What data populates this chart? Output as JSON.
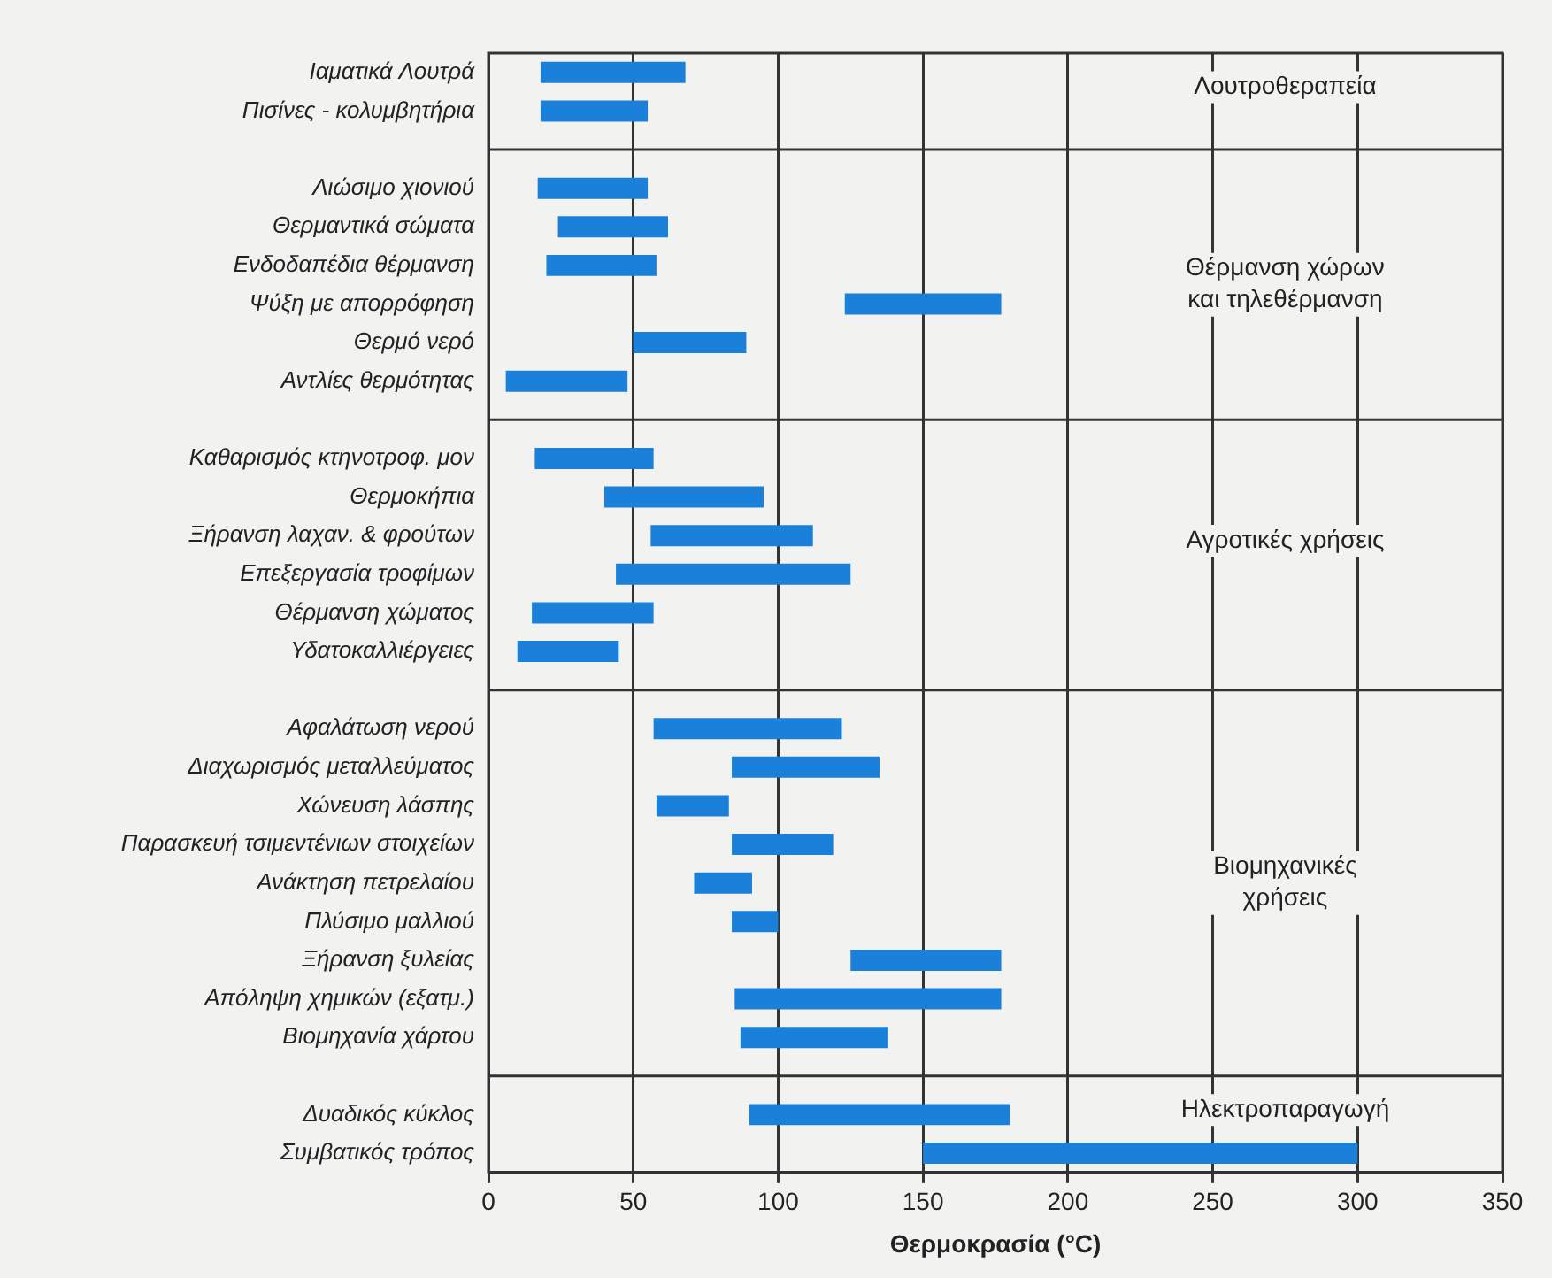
{
  "chart_data": {
    "type": "bar",
    "orientation": "horizontal",
    "xlabel": "Θερμοκρασία (°C)",
    "categories": [
      "Ιαματικά Λουτρά",
      "Πισίνες - κολυμβητήρια",
      null,
      "Λιώσιμο χιονιού",
      "Θερμαντικά σώματα",
      "Ενδοδαπέδια θέρμανση",
      "Ψύξη με απορρόφηση",
      "Θερμό νερό",
      "Αντλίες θερμότητας",
      null,
      "Καθαρισμός κτηνοτροφ. μον",
      "Θερμοκήπια",
      "Ξήρανση λαχαν. & φρούτων",
      "Επεξεργασία τροφίμων",
      "Θέρμανση χώματος",
      "Υδατοκαλλιέργειες",
      null,
      "Αφαλάτωση νερού",
      "Διαχωρισμός μεταλλεύματος",
      "Χώνευση λάσπης",
      "Παρασκευή τσιμεντένιων στοιχείων",
      "Ανάκτηση πετρελαίου",
      "Πλύσιμο μαλλιού",
      "Ξήρανση ξυλείας",
      "Απόληψη χημικών (εξατμ.)",
      "Βιομηχανία χάρτου",
      null,
      "Δυαδικός κύκλος",
      "Συμβατικός τρόπος"
    ],
    "base": [
      18,
      18,
      null,
      17,
      24,
      20,
      123,
      50,
      6,
      null,
      16,
      40,
      56,
      44,
      15,
      10,
      null,
      57,
      84,
      58,
      84,
      71,
      84,
      125,
      85,
      87,
      null,
      90,
      150
    ],
    "values": [
      50,
      37,
      null,
      38,
      38,
      38,
      54,
      39,
      42,
      null,
      41,
      55,
      56,
      81,
      42,
      35,
      null,
      65,
      51,
      25,
      35,
      20,
      16,
      52,
      92,
      51,
      null,
      90,
      150
    ],
    "color": "#1a80d9",
    "xlim": [
      0,
      350
    ],
    "xticks": [
      0,
      50,
      100,
      150,
      200,
      250,
      300,
      350
    ],
    "grid": "x",
    "annotations": [
      "Λουτροθεραπεία",
      "Θέρμανση χώρων και τηλεθέρμανση",
      "Αγροτικές χρήσεις",
      "Βιομηχανικές χρήσεις",
      "Ηλεκτροπαραγωγή"
    ]
  }
}
